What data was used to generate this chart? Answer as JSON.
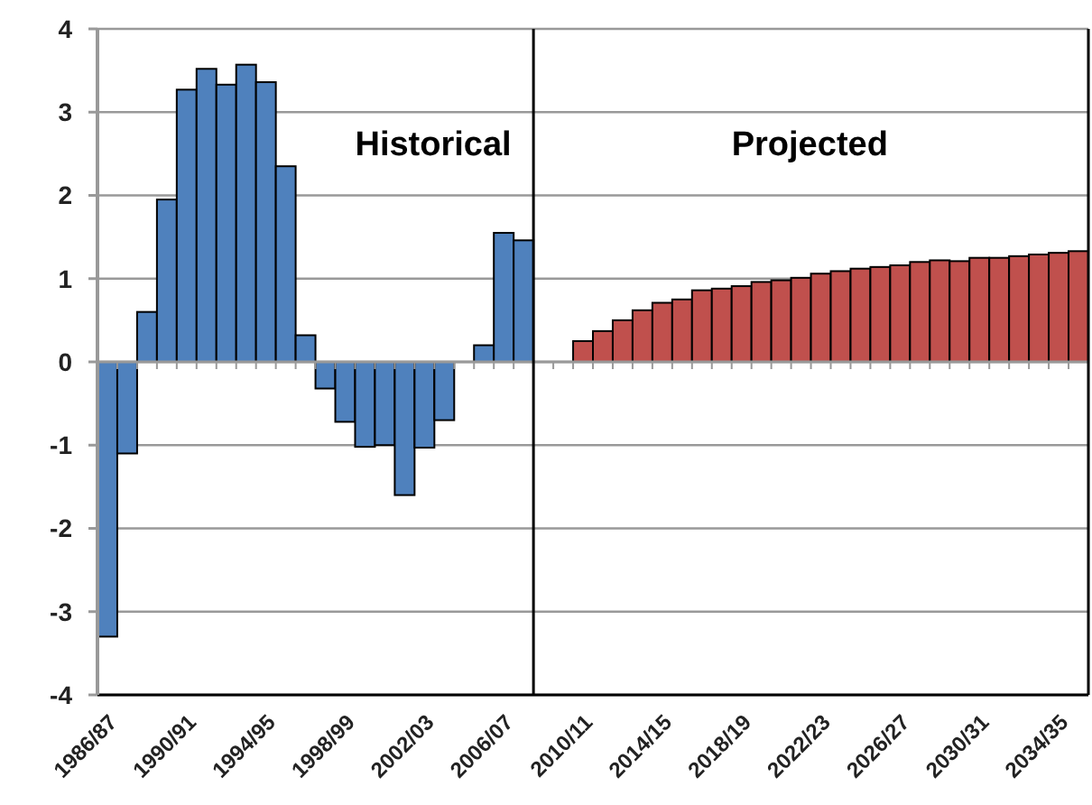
{
  "chart_data": {
    "type": "bar",
    "categories": [
      "1986/87",
      null,
      null,
      null,
      "1990/91",
      null,
      null,
      null,
      "1994/95",
      null,
      null,
      null,
      "1998/99",
      null,
      null,
      null,
      "2002/03",
      null,
      null,
      null,
      "2006/07",
      null,
      null,
      null,
      "2010/11",
      null,
      null,
      null,
      "2014/15",
      null,
      null,
      null,
      "2018/19",
      null,
      null,
      null,
      "2022/23",
      null,
      null,
      null,
      "2026/27",
      null,
      null,
      null,
      "2030/31",
      null,
      null,
      null,
      "2034/35",
      null
    ],
    "series": [
      {
        "color": "#4f81bd",
        "values": [
          -3.3,
          -1.1,
          0.6,
          1.95,
          3.27,
          3.52,
          3.33,
          3.57,
          3.36,
          2.35,
          0.32,
          -0.32,
          -0.72,
          -1.02,
          -1.0,
          -1.6,
          -1.03,
          -0.7,
          null,
          0.2,
          1.55,
          1.46,
          null,
          null,
          null,
          null,
          null,
          null,
          null,
          null,
          null,
          null,
          null,
          null,
          null,
          null,
          null,
          null,
          null,
          null,
          null,
          null,
          null,
          null,
          null,
          null,
          null,
          null,
          null,
          null
        ]
      },
      {
        "color": "#c0504d",
        "values": [
          null,
          null,
          null,
          null,
          null,
          null,
          null,
          null,
          null,
          null,
          null,
          null,
          null,
          null,
          null,
          null,
          null,
          null,
          null,
          null,
          null,
          null,
          null,
          null,
          0.25,
          0.37,
          0.5,
          0.62,
          0.71,
          0.75,
          0.86,
          0.88,
          0.91,
          0.96,
          0.98,
          1.01,
          1.06,
          1.09,
          1.12,
          1.14,
          1.16,
          1.2,
          1.22,
          1.21,
          1.25,
          1.25,
          1.27,
          1.29,
          1.31,
          1.33
        ]
      }
    ],
    "annotations": [
      "Historical",
      "Projected"
    ],
    "ylim": [
      -4,
      4
    ],
    "yticks": [
      -4,
      -3,
      -2,
      -1,
      0,
      1,
      2,
      3,
      4
    ],
    "grid": "y"
  }
}
